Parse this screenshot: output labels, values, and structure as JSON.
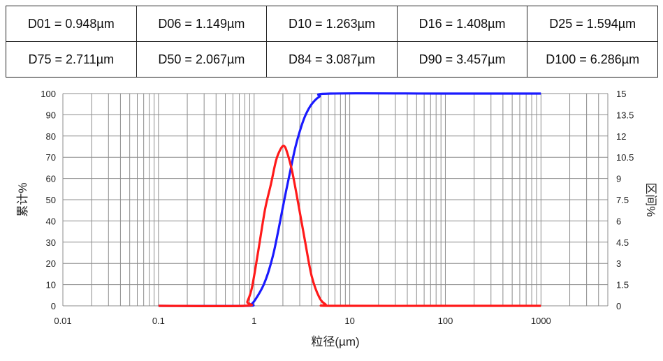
{
  "table": {
    "rows": [
      [
        "D01 = 0.948µm",
        "D06 = 1.149µm",
        "D10 = 1.263µm",
        "D16 = 1.408µm",
        "D25 = 1.594µm"
      ],
      [
        "D75 = 2.711µm",
        "D50 = 2.067µm",
        "D84 = 3.087µm",
        "D90 = 3.457µm",
        "D100 = 6.286µm"
      ]
    ]
  },
  "chart_data": {
    "type": "line",
    "xlabel": "粒径(µm)",
    "ylabel": "累计%",
    "y2label": "区间%",
    "xscale": "log",
    "xlim": [
      0.01,
      5000
    ],
    "xticks": [
      "0.01",
      "0.1",
      "1",
      "10",
      "100",
      "1000"
    ],
    "ylim": [
      0,
      100
    ],
    "yticks": [
      "0",
      "10",
      "20",
      "30",
      "40",
      "50",
      "60",
      "70",
      "80",
      "90",
      "100"
    ],
    "y2lim": [
      0,
      15
    ],
    "y2ticks": [
      "0",
      "1.5",
      "3",
      "4.5",
      "6",
      "7.5",
      "9",
      "10.5",
      "12",
      "13.5",
      "15"
    ],
    "grid": true,
    "series": [
      {
        "color": "#1a1aff",
        "axis": "left",
        "x": [
          0.1,
          0.8,
          0.95,
          1.1,
          1.26,
          1.41,
          1.6,
          1.8,
          2.07,
          2.4,
          2.71,
          3.09,
          3.46,
          4.0,
          4.8,
          6.29,
          100,
          1000
        ],
        "y": [
          0,
          0,
          1,
          5,
          10,
          16,
          25,
          36,
          50,
          64,
          75,
          84,
          90,
          95,
          98.5,
          100,
          100,
          100
        ]
      },
      {
        "color": "#ff1a1a",
        "axis": "right",
        "x": [
          0.1,
          0.8,
          0.85,
          0.95,
          1.1,
          1.3,
          1.5,
          1.7,
          1.9,
          2.05,
          2.2,
          2.5,
          2.9,
          3.4,
          4.0,
          4.8,
          5.6,
          6.3,
          100,
          1000
        ],
        "y": [
          0,
          0,
          0.3,
          1.3,
          3.8,
          6.8,
          8.6,
          10.3,
          11.1,
          11.3,
          10.9,
          9.5,
          7.2,
          4.6,
          2.1,
          0.6,
          0.1,
          0,
          0,
          0
        ]
      }
    ]
  }
}
